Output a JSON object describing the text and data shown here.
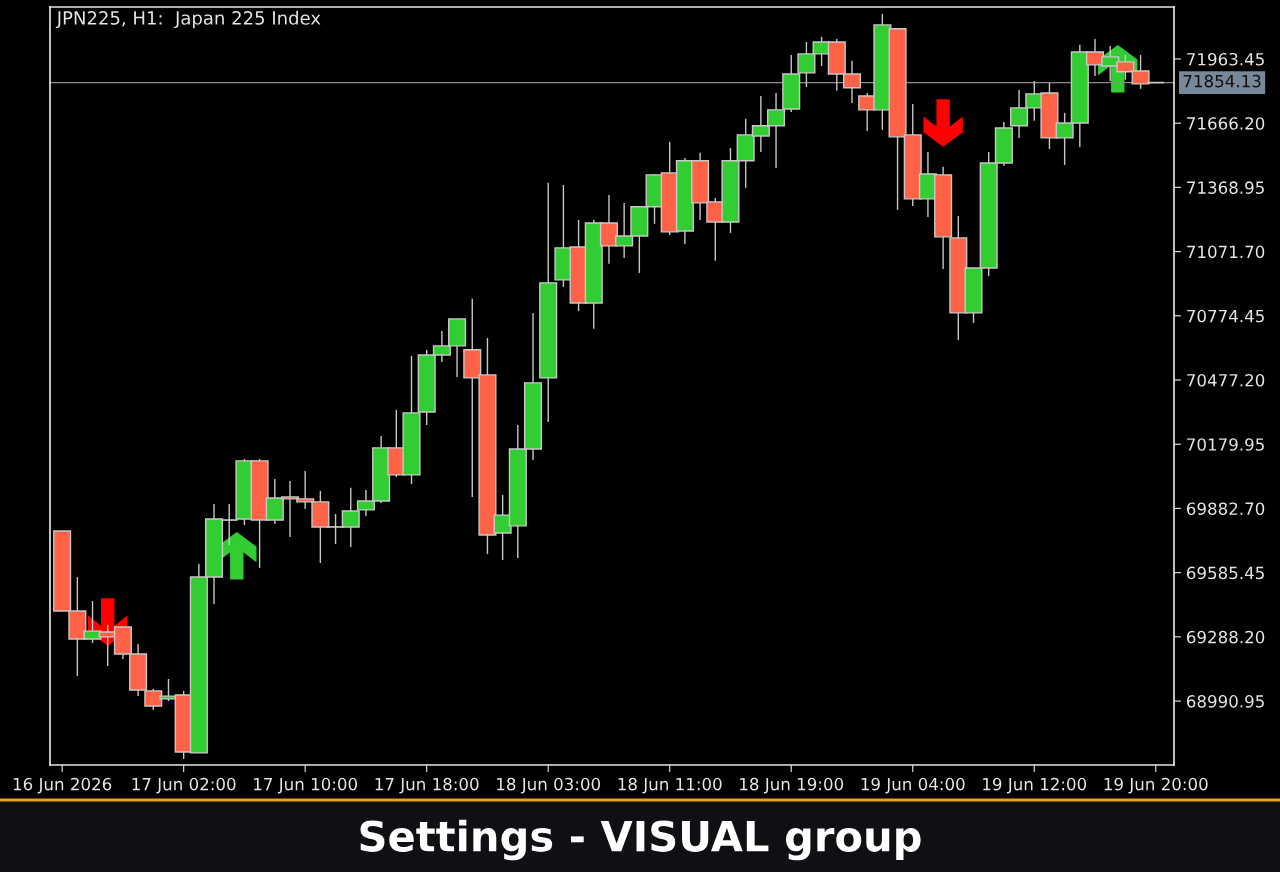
{
  "chart_data": {
    "type": "candlestick",
    "title": "JPN225, H1:  Japan 225 Index",
    "annotations": [
      "Settings - VISUAL group"
    ],
    "categories": [
      "16 Jun 2026",
      null,
      null,
      null,
      null,
      null,
      null,
      null,
      "17 Jun 02:00",
      null,
      null,
      null,
      null,
      null,
      null,
      null,
      "17 Jun 10:00",
      null,
      null,
      null,
      null,
      null,
      null,
      null,
      "17 Jun 18:00",
      null,
      null,
      null,
      null,
      null,
      null,
      null,
      "18 Jun 03:00",
      null,
      null,
      null,
      null,
      null,
      null,
      null,
      "18 Jun 11:00",
      null,
      null,
      null,
      null,
      null,
      null,
      null,
      "18 Jun 19:00",
      null,
      null,
      null,
      null,
      null,
      null,
      null,
      "19 Jun 04:00",
      null,
      null,
      null,
      null,
      null,
      null,
      null,
      "19 Jun 12:00",
      null,
      null,
      null,
      null,
      null,
      null,
      null,
      "19 Jun 20:00"
    ],
    "ohlc": [
      [
        69778,
        69778,
        69408,
        69408
      ],
      [
        69408,
        69565,
        69107,
        69278
      ],
      [
        69278,
        69454,
        69260,
        69315
      ],
      [
        69311,
        69343,
        69153,
        69288
      ],
      [
        69334,
        69334,
        69186,
        69209
      ],
      [
        69209,
        69255,
        69014,
        69042
      ],
      [
        69038,
        69047,
        68950,
        68968
      ],
      [
        69001,
        69093,
        68991,
        69014
      ],
      [
        69019,
        69038,
        68723,
        68755
      ],
      [
        68751,
        69626,
        68751,
        69565
      ],
      [
        69565,
        69903,
        69440,
        69834
      ],
      [
        69829,
        69903,
        69714,
        69829
      ],
      [
        69834,
        70112,
        69806,
        70103
      ],
      [
        70103,
        70112,
        69607,
        69829
      ],
      [
        69829,
        70019,
        69811,
        69931
      ],
      [
        69936,
        70010,
        69751,
        69927
      ],
      [
        69927,
        70056,
        69880,
        69913
      ],
      [
        69913,
        69964,
        69630,
        69797
      ],
      [
        69797,
        69857,
        69718,
        69797
      ],
      [
        69797,
        69978,
        69704,
        69871
      ],
      [
        69876,
        69968,
        69848,
        69917
      ],
      [
        69917,
        70218,
        69908,
        70163
      ],
      [
        70163,
        70339,
        70028,
        70038
      ],
      [
        70038,
        70589,
        69996,
        70325
      ],
      [
        70329,
        70617,
        70269,
        70593
      ],
      [
        70593,
        70704,
        70561,
        70635
      ],
      [
        70635,
        70760,
        70491,
        70760
      ],
      [
        70617,
        70853,
        69936,
        70487
      ],
      [
        70501,
        70672,
        69672,
        69760
      ],
      [
        69769,
        69945,
        69644,
        69852
      ],
      [
        69802,
        70269,
        69653,
        70158
      ],
      [
        70158,
        70788,
        70107,
        70464
      ],
      [
        70487,
        71390,
        70283,
        70927
      ],
      [
        70941,
        71380,
        70908,
        71089
      ],
      [
        71093,
        71218,
        70797,
        70834
      ],
      [
        70834,
        71218,
        70714,
        71204
      ],
      [
        71204,
        71334,
        71015,
        71098
      ],
      [
        71098,
        71297,
        71042,
        71144
      ],
      [
        71144,
        71279,
        70973,
        71279
      ],
      [
        71279,
        71431,
        71200,
        71427
      ],
      [
        71436,
        71580,
        71149,
        71163
      ],
      [
        71167,
        71505,
        71107,
        71492
      ],
      [
        71492,
        71529,
        71218,
        71297
      ],
      [
        71302,
        71320,
        71029,
        71209
      ],
      [
        71209,
        71552,
        71158,
        71492
      ],
      [
        71492,
        71686,
        71367,
        71612
      ],
      [
        71607,
        71792,
        71533,
        71654
      ],
      [
        71654,
        71806,
        71459,
        71728
      ],
      [
        71732,
        71982,
        71718,
        71894
      ],
      [
        71899,
        72042,
        71834,
        71987
      ],
      [
        71987,
        72066,
        71931,
        72042
      ],
      [
        72042,
        72056,
        71816,
        71894
      ],
      [
        71894,
        71955,
        71760,
        71830
      ],
      [
        71792,
        71806,
        71630,
        71728
      ],
      [
        71728,
        72172,
        71635,
        72121
      ],
      [
        72103,
        72103,
        71265,
        71603
      ],
      [
        71612,
        71755,
        71283,
        71316
      ],
      [
        71316,
        71533,
        71232,
        71431
      ],
      [
        71427,
        71464,
        70991,
        71140
      ],
      [
        71135,
        71237,
        70663,
        70788
      ],
      [
        70788,
        70996,
        70741,
        70996
      ],
      [
        70996,
        71533,
        70959,
        71482
      ],
      [
        71482,
        71672,
        71468,
        71644
      ],
      [
        71654,
        71820,
        71598,
        71737
      ],
      [
        71737,
        71862,
        71677,
        71802
      ],
      [
        71806,
        71853,
        71547,
        71598
      ],
      [
        71598,
        71714,
        71473,
        71667
      ],
      [
        71667,
        72029,
        71556,
        71996
      ],
      [
        71996,
        72056,
        71885,
        71936
      ],
      [
        71931,
        72024,
        71862,
        71973
      ],
      [
        71950,
        71982,
        71867,
        71904
      ],
      [
        71908,
        71982,
        71825,
        71848
      ],
      [
        71854,
        71854,
        71854,
        71854
      ]
    ],
    "ylim": [
      68695,
      72204
    ],
    "yticks": [
      68990.95,
      {
        "value": 69288.2,
        "label": "69288.20"
      },
      69585.45,
      {
        "value": 69882.7,
        "label": "69882.70"
      },
      70179.95,
      {
        "value": 70477.2,
        "label": "70477.20"
      },
      70774.45,
      {
        "value": 71071.7,
        "label": "71071.70"
      },
      71368.95,
      {
        "value": 71666.2,
        "label": "71666.20"
      },
      71963.45
    ],
    "ref_lines": [
      {
        "axis": "y",
        "value": 71854.13,
        "label": "71854.13",
        "color": "#8c8c8c"
      }
    ],
    "grid": false,
    "legend": false
  }
}
